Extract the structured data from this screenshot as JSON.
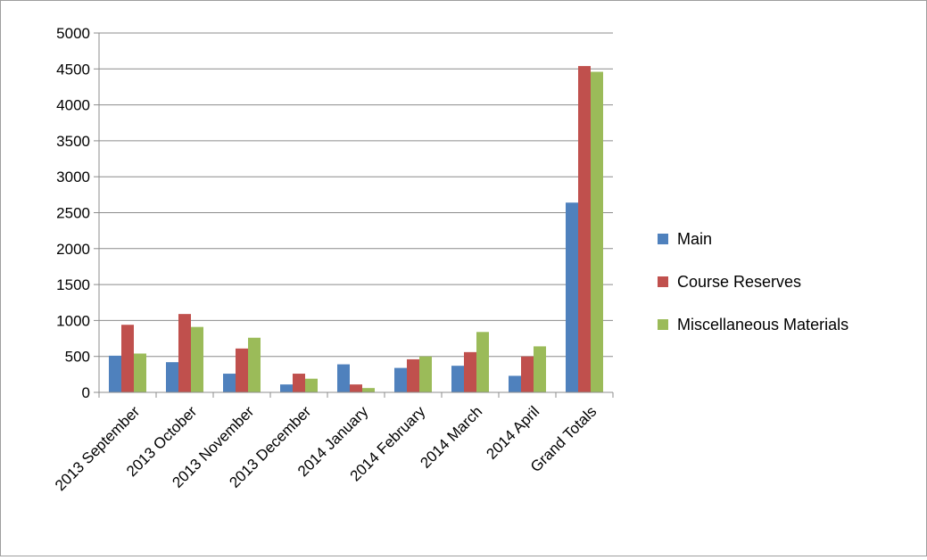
{
  "chart_data": {
    "type": "bar",
    "title": "",
    "xlabel": "",
    "ylabel": "",
    "ylim": [
      0,
      5000
    ],
    "yticks": [
      0,
      500,
      1000,
      1500,
      2000,
      2500,
      3000,
      3500,
      4000,
      4500,
      5000
    ],
    "grid": true,
    "legend_position": "right",
    "categories": [
      "2013 September",
      "2013 October",
      "2013 November",
      "2013 December",
      "2014 January",
      "2014 February",
      "2014 March",
      "2014 April",
      "Grand Totals"
    ],
    "series": [
      {
        "name": "Main",
        "color": "#4f81bd",
        "values": [
          510,
          420,
          260,
          110,
          390,
          340,
          370,
          230,
          2640
        ]
      },
      {
        "name": "Course Reserves",
        "color": "#c0504d",
        "values": [
          940,
          1090,
          610,
          260,
          110,
          460,
          560,
          500,
          4540
        ]
      },
      {
        "name": "Miscellaneous Materials",
        "color": "#9bbb59",
        "values": [
          540,
          910,
          760,
          190,
          60,
          500,
          840,
          640,
          4460
        ]
      }
    ]
  }
}
